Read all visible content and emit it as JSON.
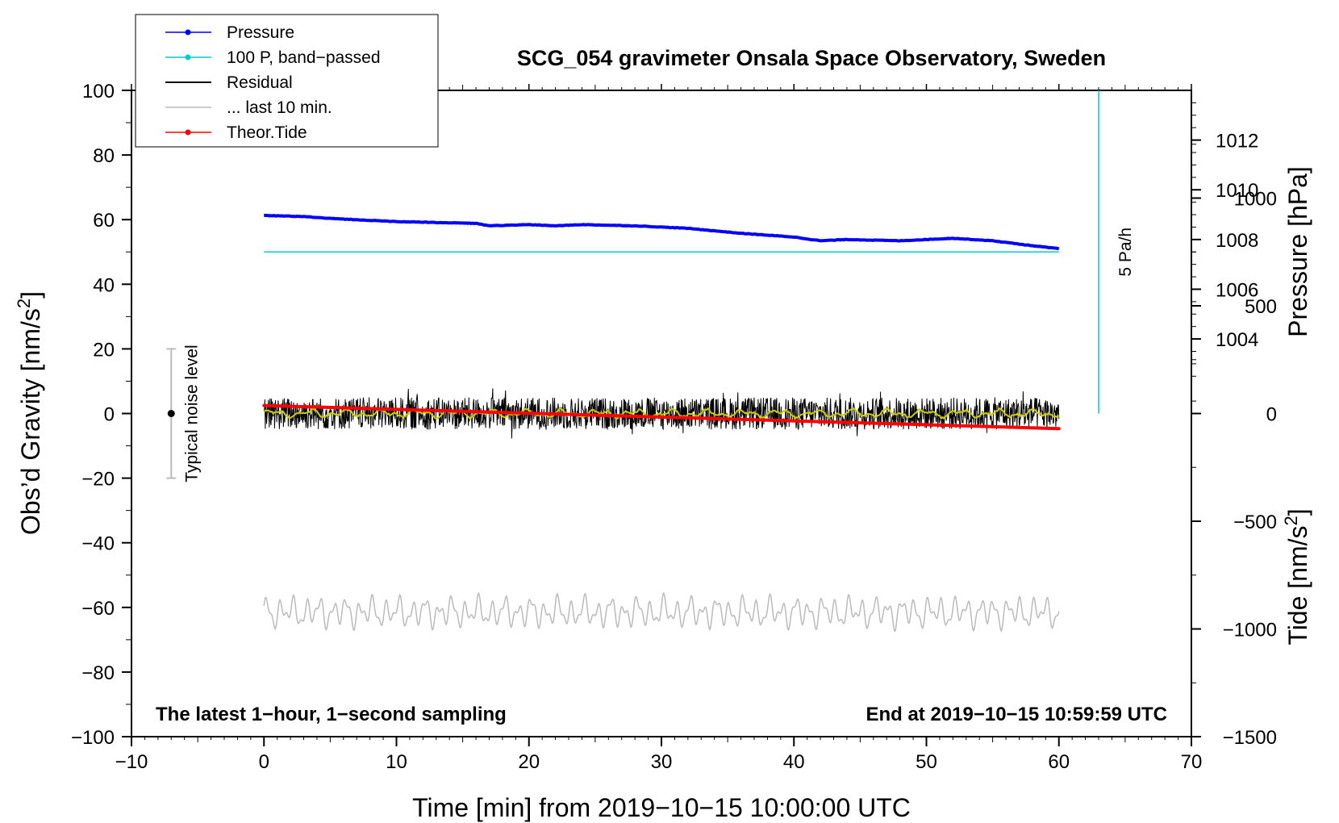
{
  "chart_data": {
    "type": "line",
    "title": "SCG_054 gravimeter Onsala Space Observatory, Sweden",
    "xlabel": "Time [min] from 2019−10−15 10:00:00 UTC",
    "ylabel_left": "Obs’d Gravity [nm/s",
    "ylabel_left_sup": "2",
    "ylabel_left_end": "]",
    "ylabel_right_pressure": "Pressure [hPa]",
    "ylabel_right_tide": "Tide [nm/s",
    "ylabel_right_tide_sup": "2",
    "ylabel_right_tide_end": "]",
    "xlim": [
      -10,
      70
    ],
    "ylim_left": [
      -100,
      100
    ],
    "x_ticks": [
      {
        "v": -10,
        "label": "−10"
      },
      {
        "v": 0,
        "label": "0"
      },
      {
        "v": 10,
        "label": "10"
      },
      {
        "v": 20,
        "label": "20"
      },
      {
        "v": 30,
        "label": "30"
      },
      {
        "v": 40,
        "label": "40"
      },
      {
        "v": 50,
        "label": "50"
      },
      {
        "v": 60,
        "label": "60"
      },
      {
        "v": 70,
        "label": "70"
      }
    ],
    "y_left_ticks": [
      {
        "v": 100,
        "label": "100"
      },
      {
        "v": 80,
        "label": "80"
      },
      {
        "v": 60,
        "label": "60"
      },
      {
        "v": 40,
        "label": "40"
      },
      {
        "v": 20,
        "label": "20"
      },
      {
        "v": 0,
        "label": "0"
      },
      {
        "v": -20,
        "label": "−20"
      },
      {
        "v": -40,
        "label": "−40"
      },
      {
        "v": -60,
        "label": "−60"
      },
      {
        "v": -80,
        "label": "−80"
      },
      {
        "v": -100,
        "label": "−100"
      }
    ],
    "pressure_axis": {
      "range_hpa": [
        1001.0,
        1014.0
      ],
      "left_equivalent": [
        0,
        100
      ],
      "ticks": [
        {
          "v": 1012,
          "label": "1012"
        },
        {
          "v": 1010,
          "label": "1010"
        },
        {
          "v": 1008,
          "label": "1008"
        },
        {
          "v": 1006,
          "label": "1006"
        },
        {
          "v": 1004,
          "label": "1004"
        }
      ]
    },
    "tide_axis": {
      "range_nms2": [
        -1500,
        1500
      ],
      "left_equivalent": [
        -100,
        100
      ],
      "ticks": [
        {
          "v": 1000,
          "label": "1000"
        },
        {
          "v": 500,
          "label": "500"
        },
        {
          "v": 0,
          "label": "0"
        },
        {
          "v": -500,
          "label": "−500"
        },
        {
          "v": -1000,
          "label": "−1000"
        },
        {
          "v": -1500,
          "label": "−1500"
        }
      ]
    },
    "series": [
      {
        "name": "Pressure",
        "color": "#0000ff",
        "unit": "hPa",
        "x": [
          0,
          3,
          6,
          10,
          16,
          17,
          20,
          22,
          24,
          28,
          32,
          36,
          40,
          42,
          44,
          48,
          52,
          55,
          58,
          60
        ],
        "values": [
          1008.97,
          1008.92,
          1008.82,
          1008.72,
          1008.65,
          1008.55,
          1008.6,
          1008.55,
          1008.6,
          1008.55,
          1008.45,
          1008.25,
          1008.1,
          1007.95,
          1008.0,
          1007.95,
          1008.05,
          1007.95,
          1007.75,
          1007.63
        ]
      },
      {
        "name": "100 P, band−passed",
        "color": "#00cccc",
        "x": [
          0,
          60
        ],
        "values": [
          50,
          50
        ]
      },
      {
        "name": "Residual",
        "color": "#000000",
        "amplitude_nms2": 5,
        "noise_peak_nms2": 8
      },
      {
        "name": "... last 10 min.",
        "color": "#bbbbbb",
        "center_nms2": -61.5,
        "amplitude_nms2": 5
      },
      {
        "name": "Theor.Tide",
        "color": "#ff0000",
        "unit": "nm/s2 (tide axis)",
        "x": [
          0,
          60
        ],
        "values": [
          37,
          -70
        ]
      }
    ],
    "residual_smooth_color": "#cccc00",
    "legend": {
      "position": "top-left",
      "entries": [
        {
          "label": "Pressure",
          "color": "#0000ff",
          "marker": true
        },
        {
          "label": "100 P, band−passed",
          "color": "#00cccc",
          "marker": true
        },
        {
          "label": "Residual",
          "color": "#000000",
          "marker": false
        },
        {
          "label": "... last 10 min.",
          "color": "#bbbbbb",
          "marker": false
        },
        {
          "label": "Theor.Tide",
          "color": "#ff0000",
          "marker": true
        }
      ]
    },
    "annotations": {
      "noise_label": "Typical noise level",
      "noise_range": [
        -20,
        20
      ],
      "noise_x": -7,
      "scale_label": "5 Pa/h",
      "scale_x": 63,
      "footer_left": "The latest 1−hour, 1−second sampling",
      "footer_right": "End at 2019−10−15 10:59:59 UTC"
    }
  }
}
